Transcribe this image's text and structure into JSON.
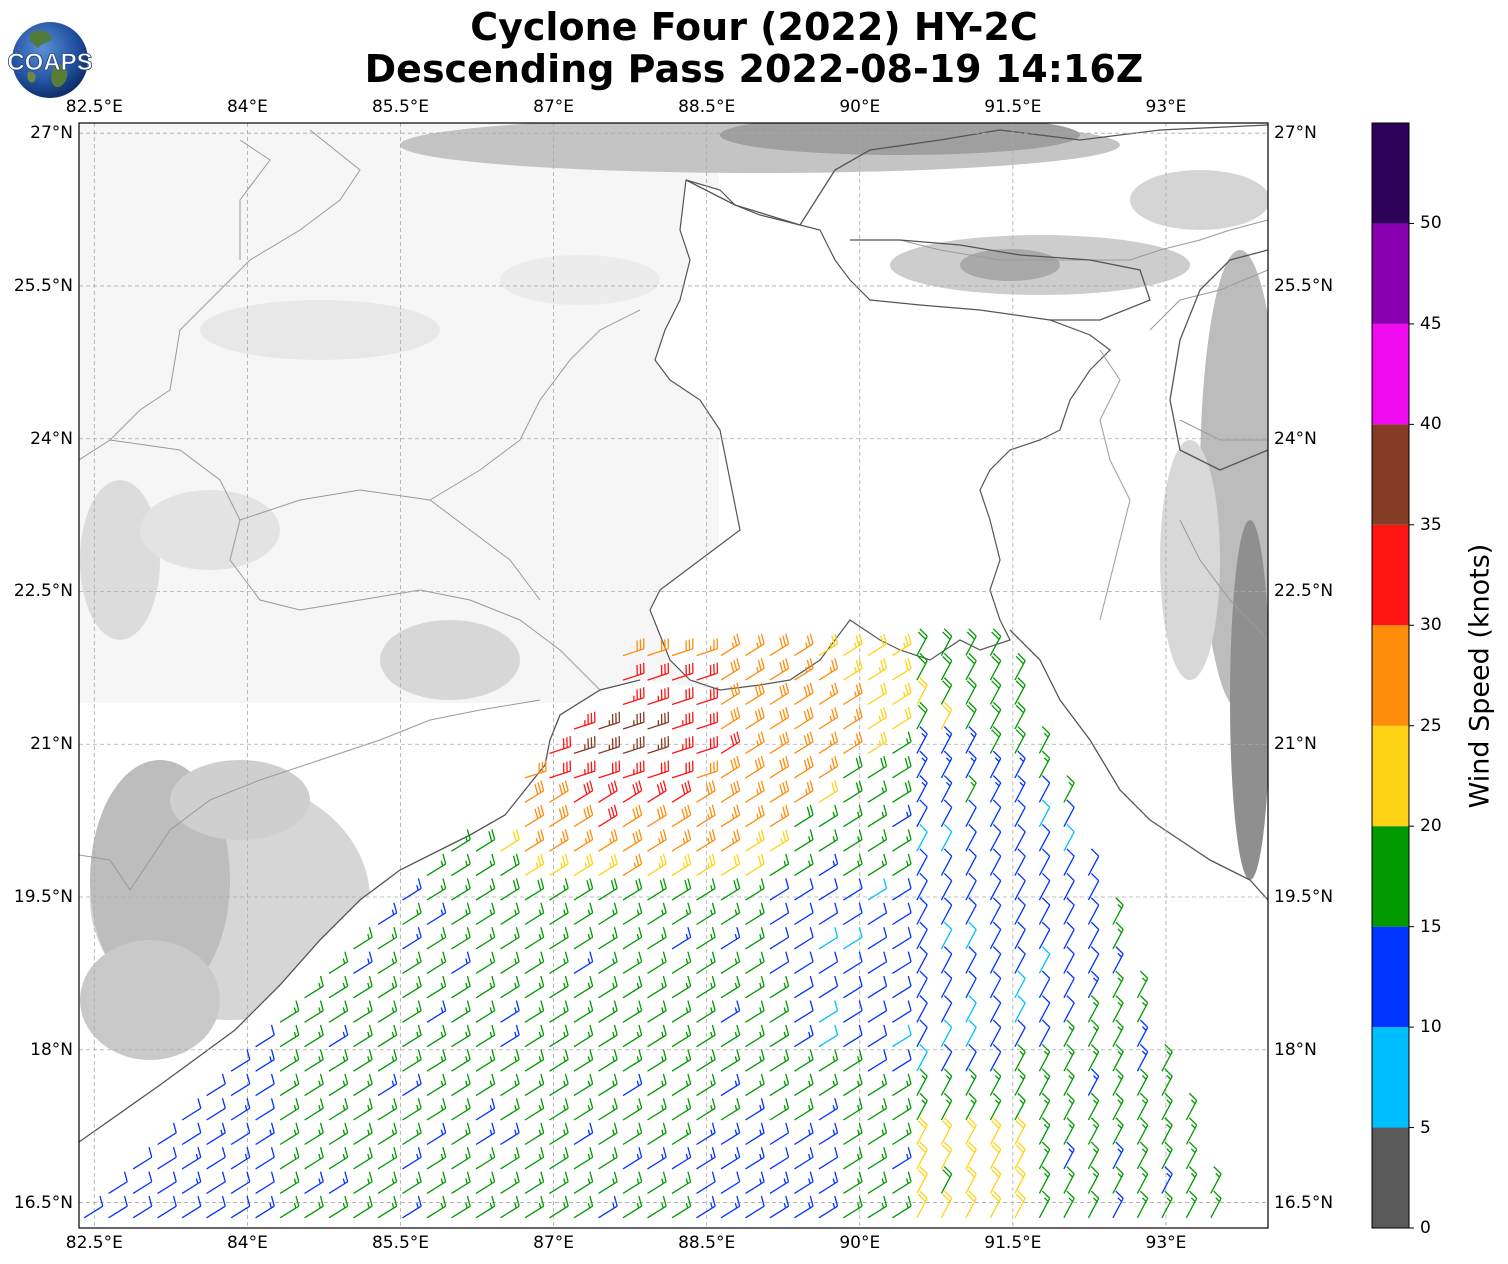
{
  "title": {
    "line1": "Cyclone Four (2022) HY-2C",
    "line2": "Descending Pass 2022-08-19 14:16Z"
  },
  "logo": {
    "text": "COAPS",
    "icon": "globe-icon"
  },
  "map": {
    "lon_min": 82.35,
    "lon_max": 94.0,
    "lat_min": 16.25,
    "lat_max": 27.1,
    "x_ticks": [
      "82.5°E",
      "84°E",
      "85.5°E",
      "87°E",
      "88.5°E",
      "90°E",
      "91.5°E",
      "93°E"
    ],
    "x_tick_values": [
      82.5,
      84,
      85.5,
      87,
      88.5,
      90,
      91.5,
      93
    ],
    "y_ticks": [
      "16.5°N",
      "18°N",
      "19.5°N",
      "21°N",
      "22.5°N",
      "24°N",
      "25.5°N",
      "27°N"
    ],
    "y_tick_values": [
      16.5,
      18,
      19.5,
      21,
      22.5,
      24,
      25.5,
      27
    ],
    "gridlines": true,
    "background": "grayscale topography",
    "features": [
      "coastline",
      "country borders",
      "state borders"
    ]
  },
  "wind_barbs": {
    "unit": "knots",
    "swath": "descending pass, roughly 16.3°N–21.8°N, 82.4°E–93.5°E",
    "sample": [
      {
        "lon": 87.2,
        "lat": 21.1,
        "speed": 32,
        "dir": "SW"
      },
      {
        "lon": 87.5,
        "lat": 20.7,
        "speed": 27,
        "dir": "SW"
      },
      {
        "lon": 88.0,
        "lat": 20.0,
        "speed": 22,
        "dir": "SW"
      },
      {
        "lon": 89.5,
        "lat": 19.2,
        "speed": 22,
        "dir": "SW"
      },
      {
        "lon": 90.8,
        "lat": 20.4,
        "speed": 17,
        "dir": "SW"
      },
      {
        "lon": 90.5,
        "lat": 19.0,
        "speed": 13,
        "dir": "SW"
      },
      {
        "lon": 85.5,
        "lat": 18.5,
        "speed": 17,
        "dir": "SW"
      },
      {
        "lon": 83.3,
        "lat": 17.1,
        "speed": 12,
        "dir": "SW"
      },
      {
        "lon": 89.0,
        "lat": 17.5,
        "speed": 17,
        "dir": "SW"
      },
      {
        "lon": 92.5,
        "lat": 17.8,
        "speed": 17,
        "dir": "SW"
      }
    ]
  },
  "colorbar": {
    "label": "Wind Speed (knots)",
    "ticks": [
      "0",
      "5",
      "10",
      "15",
      "20",
      "25",
      "30",
      "35",
      "40",
      "45",
      "50"
    ],
    "bins": [
      {
        "from": 0,
        "to": 5,
        "color": "#595959"
      },
      {
        "from": 5,
        "to": 10,
        "color": "#00bfff"
      },
      {
        "from": 10,
        "to": 15,
        "color": "#0033ff"
      },
      {
        "from": 15,
        "to": 20,
        "color": "#009900"
      },
      {
        "from": 20,
        "to": 25,
        "color": "#ffd315"
      },
      {
        "from": 25,
        "to": 30,
        "color": "#ff8c0a"
      },
      {
        "from": 30,
        "to": 35,
        "color": "#ff1414"
      },
      {
        "from": 35,
        "to": 40,
        "color": "#843c25"
      },
      {
        "from": 40,
        "to": 45,
        "color": "#f00af0"
      },
      {
        "from": 45,
        "to": 50,
        "color": "#8800b0"
      },
      {
        "from": 50,
        "to": 55,
        "color": "#2d0059"
      }
    ]
  }
}
